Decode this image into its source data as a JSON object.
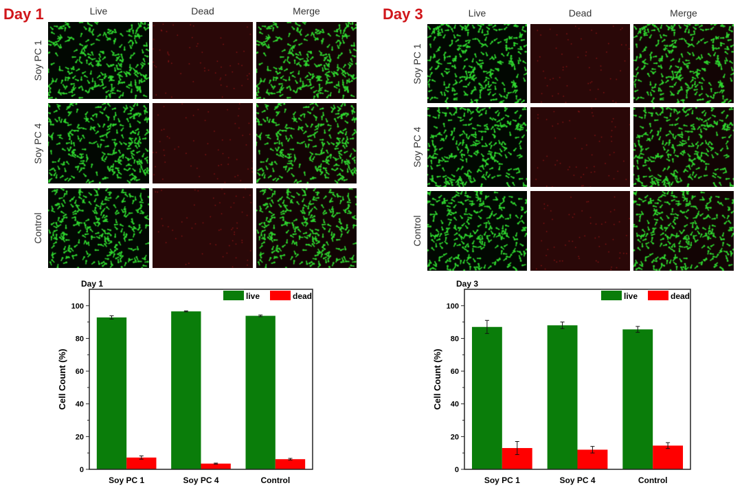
{
  "panels": [
    {
      "day_label": "Day 1",
      "columns": [
        "Live",
        "Dead",
        "Merge"
      ],
      "rows": [
        "Soy PC 1",
        "Soy PC 4",
        "Control"
      ]
    },
    {
      "day_label": "Day 3",
      "columns": [
        "Live",
        "Dead",
        "Merge"
      ],
      "rows": [
        "Soy PC 1",
        "Soy PC 4",
        "Control"
      ]
    }
  ],
  "colors": {
    "live": "#0a7d0a",
    "dead": "#ff0000",
    "day_label": "#d0161b",
    "micro_live": "#2fd62f",
    "micro_dead_bg": "#2a0808"
  },
  "chart_data": [
    {
      "type": "bar",
      "title": "Day 1",
      "ylabel": "Cell Count (%)",
      "xlabel": "",
      "ylim": [
        0,
        110
      ],
      "yticks": [
        0,
        20,
        40,
        60,
        80,
        100
      ],
      "categories": [
        "Soy PC 1",
        "Soy PC 4",
        "Control"
      ],
      "legend_position": "top-right",
      "series": [
        {
          "name": "live",
          "values": [
            92.8,
            96.5,
            93.8
          ],
          "errors": [
            1.0,
            0.3,
            0.5
          ]
        },
        {
          "name": "dead",
          "values": [
            7.2,
            3.5,
            6.2
          ],
          "errors": [
            1.0,
            0.3,
            0.5
          ]
        }
      ]
    },
    {
      "type": "bar",
      "title": "Day 3",
      "ylabel": "Cell Count (%)",
      "xlabel": "",
      "ylim": [
        0,
        110
      ],
      "yticks": [
        0,
        20,
        40,
        60,
        80,
        100
      ],
      "categories": [
        "Soy PC 1",
        "Soy PC 4",
        "Control"
      ],
      "legend_position": "top-right",
      "series": [
        {
          "name": "live",
          "values": [
            87.0,
            88.0,
            85.5
          ],
          "errors": [
            4.0,
            2.0,
            1.8
          ]
        },
        {
          "name": "dead",
          "values": [
            13.0,
            12.0,
            14.5
          ],
          "errors": [
            4.0,
            2.0,
            1.8
          ]
        }
      ]
    }
  ]
}
